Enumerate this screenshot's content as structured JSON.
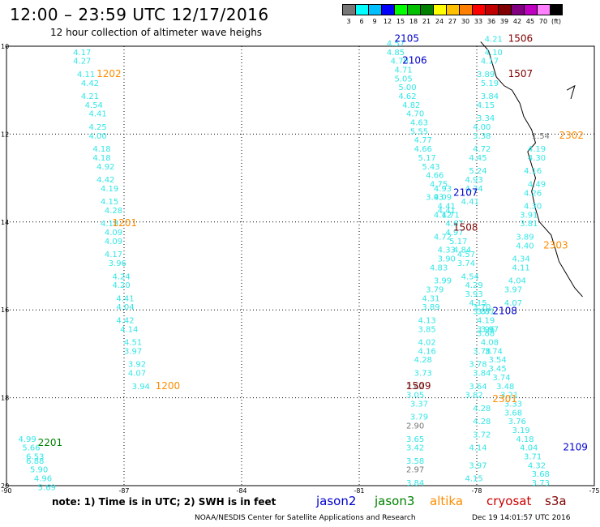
{
  "title": "12:00 – 23:59 UTC 12/17/2016",
  "subtitle": "12 hour collection of altimeter wave heighs",
  "color_scale": {
    "labels": [
      "3",
      "6",
      "9",
      "12",
      "15",
      "18",
      "21",
      "24",
      "27",
      "30",
      "33",
      "36",
      "39",
      "42",
      "45",
      "70",
      "(ft)"
    ],
    "colors": [
      "#777777",
      "#00ffff",
      "#00bfff",
      "#0000ff",
      "#00ff00",
      "#00c000",
      "#008000",
      "#ffff00",
      "#ffc000",
      "#ff8000",
      "#ff0000",
      "#c00000",
      "#800000",
      "#800080",
      "#c000c0",
      "#ff80ff",
      "#000000"
    ]
  },
  "axes": {
    "lat_labels": [
      "10",
      "12",
      "14",
      "16",
      "18",
      "20"
    ],
    "lon_labels": [
      "-90",
      "-87",
      "-84",
      "-81",
      "-78",
      "-75"
    ]
  },
  "note": "note: 1) Time is in UTC; 2) SWH is in feet",
  "satellites": [
    {
      "name": "jason2",
      "color": "#0000cc"
    },
    {
      "name": "jason3",
      "color": "#008000"
    },
    {
      "name": "altika",
      "color": "#ff8c00"
    },
    {
      "name": "cryosat",
      "color": "#cc0000"
    },
    {
      "name": "s3a",
      "color": "#800000"
    }
  ],
  "footer_left": "NOAA/NESDIS Center for Satellite Applications and Research",
  "footer_right": "Dec 19 14:01:57 UTC 2016",
  "pass_labels": [
    {
      "text": "1202",
      "color": "#ff8c00",
      "lon": -87.7,
      "lat": 10.7
    },
    {
      "text": "1201",
      "color": "#ff8c00",
      "lon": -87.3,
      "lat": 14.1
    },
    {
      "text": "1200",
      "color": "#ff8c00",
      "lon": -86.2,
      "lat": 17.8
    },
    {
      "text": "2201",
      "color": "#008000",
      "lon": -89.2,
      "lat": 19.1
    },
    {
      "text": "2105",
      "color": "#0000cc",
      "lon": -80.1,
      "lat": 9.9
    },
    {
      "text": "2106",
      "color": "#0000cc",
      "lon": -79.9,
      "lat": 10.4
    },
    {
      "text": "1506",
      "color": "#800000",
      "lon": -77.2,
      "lat": 9.9
    },
    {
      "text": "1507",
      "color": "#800000",
      "lon": -77.2,
      "lat": 10.7
    },
    {
      "text": "2302",
      "color": "#ff8c00",
      "lon": -75.9,
      "lat": 12.1
    },
    {
      "text": "2107",
      "color": "#0000cc",
      "lon": -78.6,
      "lat": 13.4
    },
    {
      "text": "1508",
      "color": "#800000",
      "lon": -78.6,
      "lat": 14.2
    },
    {
      "text": "2303",
      "color": "#ff8c00",
      "lon": -76.3,
      "lat": 14.6
    },
    {
      "text": "2108",
      "color": "#0000cc",
      "lon": -77.6,
      "lat": 16.1
    },
    {
      "text": "1509",
      "color": "#800000",
      "lon": -79.8,
      "lat": 17.8
    },
    {
      "text": "2301",
      "color": "#ff8c00",
      "lon": -77.6,
      "lat": 18.1
    },
    {
      "text": "2109",
      "color": "#0000cc",
      "lon": -75.8,
      "lat": 19.2
    }
  ],
  "wave_tracks": [
    {
      "name": "altika-1202-1201-1200",
      "color": "#33e6e6",
      "points": [
        [
          "4.17",
          -88.3,
          10.2
        ],
        [
          "4.27",
          -88.3,
          10.4
        ],
        [
          "4.11",
          -88.2,
          10.7
        ],
        [
          "4.42",
          -88.1,
          10.9
        ],
        [
          "4.21",
          -88.1,
          11.2
        ],
        [
          "4.54",
          -88.0,
          11.4
        ],
        [
          "4.41",
          -87.9,
          11.6
        ],
        [
          "4.25",
          -87.9,
          11.9
        ],
        [
          "4.00",
          -87.9,
          12.1
        ],
        [
          "4.18",
          -87.8,
          12.4
        ],
        [
          "4.18",
          -87.8,
          12.6
        ],
        [
          "4.92",
          -87.7,
          12.8
        ],
        [
          "4.42",
          -87.7,
          13.1
        ],
        [
          "4.19",
          -87.6,
          13.3
        ],
        [
          "4.15",
          -87.6,
          13.6
        ],
        [
          "4.28",
          -87.5,
          13.8
        ],
        [
          "4.18",
          -87.6,
          14.1
        ],
        [
          "4.09",
          -87.5,
          14.3
        ],
        [
          "4.09",
          -87.5,
          14.5
        ],
        [
          "4.17",
          -87.5,
          14.8
        ],
        [
          "3.96",
          -87.4,
          15.0
        ],
        [
          "4.24",
          -87.3,
          15.3
        ],
        [
          "4.20",
          -87.3,
          15.5
        ],
        [
          "4.41",
          -87.2,
          15.8
        ],
        [
          "4.04",
          -87.2,
          16.0
        ],
        [
          "4.42",
          -87.2,
          16.3
        ],
        [
          "4.14",
          -87.1,
          16.5
        ],
        [
          "4.51",
          -87.0,
          16.8
        ],
        [
          "3.97",
          -87.0,
          17.0
        ],
        [
          "3.92",
          -86.9,
          17.3
        ],
        [
          "4.07",
          -86.9,
          17.5
        ],
        [
          "3.94",
          -86.8,
          17.8
        ]
      ]
    },
    {
      "name": "jason3-2201",
      "color": "#33e6e6",
      "points": [
        [
          "4.99",
          -89.7,
          19.0
        ],
        [
          "5.66",
          -89.6,
          19.2
        ],
        [
          "6.53",
          -89.5,
          19.4
        ],
        [
          "6.88",
          -89.5,
          19.5
        ],
        [
          "5.90",
          -89.4,
          19.7
        ],
        [
          "4.96",
          -89.3,
          19.9
        ],
        [
          "5.69",
          -89.2,
          20.1
        ]
      ]
    },
    {
      "name": "jason2-2105-2106-2107-2108-2109",
      "color": "#33e6e6",
      "points": [
        [
          "4.57",
          -80.3,
          10.0
        ],
        [
          "4.85",
          -80.3,
          10.2
        ],
        [
          "4.70",
          -80.2,
          10.4
        ],
        [
          "4.71",
          -80.1,
          10.6
        ],
        [
          "5.05",
          -80.1,
          10.8
        ],
        [
          "5.00",
          -80.0,
          11.0
        ],
        [
          "4.62",
          -80.0,
          11.2
        ],
        [
          "4.82",
          -79.9,
          11.4
        ],
        [
          "4.70",
          -79.8,
          11.6
        ],
        [
          "4.63",
          -79.7,
          11.8
        ],
        [
          "5.55",
          -79.7,
          12.0
        ],
        [
          "4.77",
          -79.6,
          12.2
        ],
        [
          "4.66",
          -79.6,
          12.4
        ],
        [
          "5.17",
          -79.5,
          12.6
        ],
        [
          "5.43",
          -79.4,
          12.8
        ],
        [
          "4.66",
          -79.3,
          13.0
        ],
        [
          "4.75",
          -79.2,
          13.2
        ],
        [
          "4.93",
          -79.1,
          13.3
        ],
        [
          "4.09",
          -79.1,
          13.5
        ],
        [
          "4.41",
          -79.0,
          13.7
        ],
        [
          "4.71",
          -78.9,
          13.9
        ],
        [
          "4.67",
          -78.8,
          14.1
        ],
        [
          "4.97",
          -78.8,
          14.3
        ],
        [
          "5.17",
          -78.7,
          14.5
        ],
        [
          "4.84",
          -78.6,
          14.7
        ],
        [
          "4.57",
          -78.5,
          14.8
        ],
        [
          "3.74",
          -78.5,
          15.0
        ],
        [
          "4.54",
          -78.4,
          15.3
        ],
        [
          "4.29",
          -78.3,
          15.5
        ],
        [
          "3.93",
          -78.3,
          15.7
        ],
        [
          "4.15",
          -78.2,
          15.9
        ],
        [
          "3.70",
          -78.1,
          16.0
        ],
        [
          "3.87",
          -78.1,
          16.1
        ],
        [
          "4.19",
          -78.0,
          16.3
        ],
        [
          "3.97",
          -77.9,
          16.5
        ],
        [
          "4.08",
          -77.9,
          16.8
        ],
        [
          "3.74",
          -77.8,
          17.0
        ],
        [
          "3.54",
          -77.7,
          17.2
        ],
        [
          "3.45",
          -77.7,
          17.4
        ],
        [
          "3.74",
          -77.6,
          17.6
        ],
        [
          "3.48",
          -77.5,
          17.8
        ],
        [
          "3.21",
          -77.4,
          18.0
        ],
        [
          "3.33",
          -77.3,
          18.2
        ],
        [
          "3.68",
          -77.3,
          18.4
        ],
        [
          "3.76",
          -77.2,
          18.6
        ],
        [
          "3.19",
          -77.1,
          18.8
        ],
        [
          "4.18",
          -77.0,
          19.0
        ],
        [
          "4.04",
          -76.9,
          19.2
        ],
        [
          "3.71",
          -76.8,
          19.4
        ],
        [
          "4.32",
          -76.7,
          19.6
        ],
        [
          "3.68",
          -76.6,
          19.8
        ],
        [
          "3.73",
          -76.6,
          20.0
        ]
      ]
    },
    {
      "name": "s3a-1506-1507-1508-1509",
      "color": "#33e6e6",
      "points": [
        [
          "4.21",
          -77.8,
          9.9
        ],
        [
          "4.10",
          -77.8,
          10.2
        ],
        [
          "4.17",
          -77.9,
          10.4
        ],
        [
          "3.89",
          -78.0,
          10.7
        ],
        [
          "5.19",
          -77.9,
          10.9
        ],
        [
          "3.84",
          -77.9,
          11.2
        ],
        [
          "4.15",
          -78.0,
          11.4
        ],
        [
          "3.34",
          -78.0,
          11.7
        ],
        [
          "4.00",
          -78.1,
          11.9
        ],
        [
          "3.38",
          -78.1,
          12.1
        ],
        [
          "4.72",
          -78.1,
          12.4
        ],
        [
          "4.45",
          -78.2,
          12.6
        ],
        [
          "5.24",
          -78.2,
          12.9
        ],
        [
          "4.93",
          -78.3,
          13.1
        ],
        [
          "4.74",
          -78.3,
          13.3
        ],
        [
          "4.41",
          -78.4,
          13.6
        ],
        [
          "3.93",
          -79.3,
          13.5
        ],
        [
          "4.41",
          -79.0,
          13.8
        ],
        [
          "4.12",
          -79.1,
          13.9
        ],
        [
          "4.72",
          -79.1,
          14.4
        ],
        [
          "4.33",
          -79.0,
          14.7
        ],
        [
          "3.90",
          -79.0,
          14.9
        ],
        [
          "4.83",
          -79.2,
          15.1
        ],
        [
          "3.99",
          -79.1,
          15.4
        ],
        [
          "3.79",
          -79.3,
          15.6
        ],
        [
          "4.31",
          -79.4,
          15.8
        ],
        [
          "3.89",
          -79.4,
          16.0
        ],
        [
          "4.13",
          -79.5,
          16.3
        ],
        [
          "3.85",
          -79.5,
          16.5
        ],
        [
          "4.02",
          -79.5,
          16.8
        ],
        [
          "4.16",
          -79.5,
          17.0
        ],
        [
          "4.28",
          -79.6,
          17.2
        ],
        [
          "3.73",
          -79.6,
          17.5
        ],
        [
          "2.62",
          -79.8,
          17.8
        ],
        [
          "3.05",
          -79.8,
          18.0
        ],
        [
          "3.37",
          -79.7,
          18.2
        ],
        [
          "3.79",
          -79.7,
          18.5
        ],
        [
          "2.90",
          -79.8,
          18.7
        ],
        [
          "3.65",
          -79.8,
          19.0
        ],
        [
          "3.42",
          -79.8,
          19.2
        ],
        [
          "3.58",
          -79.8,
          19.5
        ],
        [
          "2.97",
          -79.8,
          19.7
        ],
        [
          "3.84",
          -79.8,
          20.0
        ]
      ]
    },
    {
      "name": "altika-2302-2303-2301",
      "color": "#33e6e6",
      "points": [
        [
          "1.54",
          -76.6,
          12.1
        ],
        [
          "4.19",
          -76.7,
          12.4
        ],
        [
          "4.30",
          -76.7,
          12.6
        ],
        [
          "4.16",
          -76.8,
          12.9
        ],
        [
          "4.49",
          -76.7,
          13.2
        ],
        [
          "4.26",
          -76.8,
          13.4
        ],
        [
          "4.30",
          -76.8,
          13.7
        ],
        [
          "3.91",
          -76.9,
          13.9
        ],
        [
          "3.81",
          -76.9,
          14.1
        ],
        [
          "3.89",
          -77.0,
          14.4
        ],
        [
          "4.40",
          -77.0,
          14.6
        ],
        [
          "4.34",
          -77.1,
          14.9
        ],
        [
          "4.11",
          -77.1,
          15.1
        ],
        [
          "4.04",
          -77.2,
          15.4
        ],
        [
          "3.97",
          -77.3,
          15.6
        ],
        [
          "4.07",
          -77.3,
          15.9
        ],
        [
          "3.81",
          -78.0,
          16.1
        ],
        [
          "3.96",
          -78.0,
          16.5
        ],
        [
          "3.88",
          -78.0,
          16.6
        ],
        [
          "3.78",
          -78.1,
          17.0
        ],
        [
          "3.78",
          -78.2,
          17.3
        ],
        [
          "3.84",
          -78.1,
          17.5
        ],
        [
          "3.64",
          -78.2,
          17.8
        ],
        [
          "3.82",
          -78.3,
          18.0
        ],
        [
          "4.28",
          -78.1,
          18.3
        ],
        [
          "4.28",
          -78.1,
          18.6
        ],
        [
          "3.72",
          -78.1,
          18.9
        ],
        [
          "4.14",
          -78.2,
          19.2
        ],
        [
          "3.97",
          -78.2,
          19.6
        ],
        [
          "4.15",
          -78.3,
          19.9
        ]
      ]
    }
  ]
}
